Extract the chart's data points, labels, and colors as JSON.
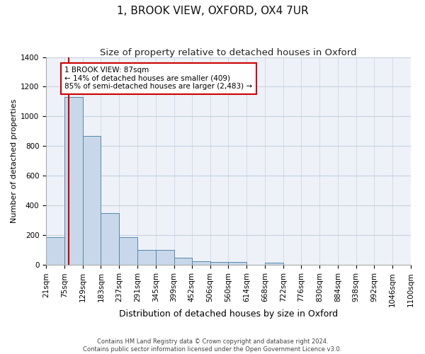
{
  "title": "1, BROOK VIEW, OXFORD, OX4 7UR",
  "subtitle": "Size of property relative to detached houses in Oxford",
  "xlabel": "Distribution of detached houses by size in Oxford",
  "ylabel": "Number of detached properties",
  "footer_line1": "Contains HM Land Registry data © Crown copyright and database right 2024.",
  "footer_line2": "Contains public sector information licensed under the Open Government Licence v3.0.",
  "bin_edges": [
    21,
    75,
    129,
    183,
    237,
    291,
    345,
    399,
    452,
    506,
    560,
    614,
    668,
    722,
    776,
    830,
    884,
    938,
    992,
    1046,
    1100
  ],
  "bar_heights": [
    190,
    1130,
    870,
    350,
    190,
    100,
    100,
    50,
    25,
    20,
    20,
    0,
    15,
    0,
    0,
    0,
    0,
    0,
    0,
    0
  ],
  "bar_color": "#c8d8ea",
  "bar_edge_color": "#5588aa",
  "property_line_x": 87,
  "property_line_color": "#cc0000",
  "annotation_text": "1 BROOK VIEW: 87sqm\n← 14% of detached houses are smaller (409)\n85% of semi-detached houses are larger (2,483) →",
  "annotation_box_color": "#ffffff",
  "annotation_box_edge_color": "#cc0000",
  "ylim": [
    0,
    1400
  ],
  "yticks": [
    0,
    200,
    400,
    600,
    800,
    1000,
    1200,
    1400
  ],
  "grid_color": "#c8d0e0",
  "bg_color": "#eef2f8",
  "title_fontsize": 11,
  "subtitle_fontsize": 9.5,
  "tick_fontsize": 7.5,
  "xlabel_fontsize": 9,
  "ylabel_fontsize": 8,
  "annotation_fontsize": 7.5,
  "footer_fontsize": 6
}
